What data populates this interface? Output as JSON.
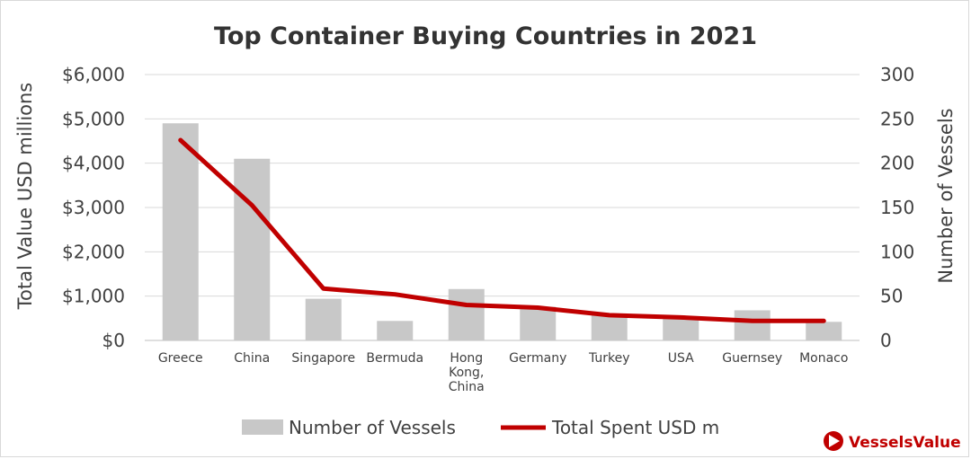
{
  "chart_data": {
    "type": "bar",
    "title": "Top Container Buying Countries in 2021",
    "categories": [
      [
        "Greece"
      ],
      [
        "China"
      ],
      [
        "Singapore"
      ],
      [
        "Bermuda"
      ],
      [
        "Hong",
        "Kong,",
        "China"
      ],
      [
        "Germany"
      ],
      [
        "Turkey"
      ],
      [
        "USA"
      ],
      [
        "Guernsey"
      ],
      [
        "Monaco"
      ]
    ],
    "series": [
      {
        "name": "Number of Vessels",
        "type": "bar",
        "axis": "right",
        "color": "#c8c8c8",
        "values": [
          245,
          205,
          47,
          22,
          58,
          38,
          30,
          27,
          34,
          21
        ]
      },
      {
        "name": "Total Spent USD m",
        "type": "line",
        "axis": "left",
        "color": "#c00000",
        "values": [
          4520,
          3050,
          1170,
          1040,
          800,
          740,
          570,
          520,
          440,
          440
        ]
      }
    ],
    "ylabel_left": "Total Value USD millions",
    "ylabel_right": "Number of Vessels",
    "ylim_left": [
      0,
      6000
    ],
    "ylim_right": [
      0,
      300
    ],
    "yticks_left": [
      "$0",
      "$1,000",
      "$2,000",
      "$3,000",
      "$4,000",
      "$5,000",
      "$6,000"
    ],
    "yticks_right": [
      "0",
      "50",
      "100",
      "150",
      "200",
      "250",
      "300"
    ],
    "grid": true,
    "legend_position": "bottom"
  },
  "branding": {
    "logo_text": "VesselsValue",
    "color": "#c00000"
  }
}
